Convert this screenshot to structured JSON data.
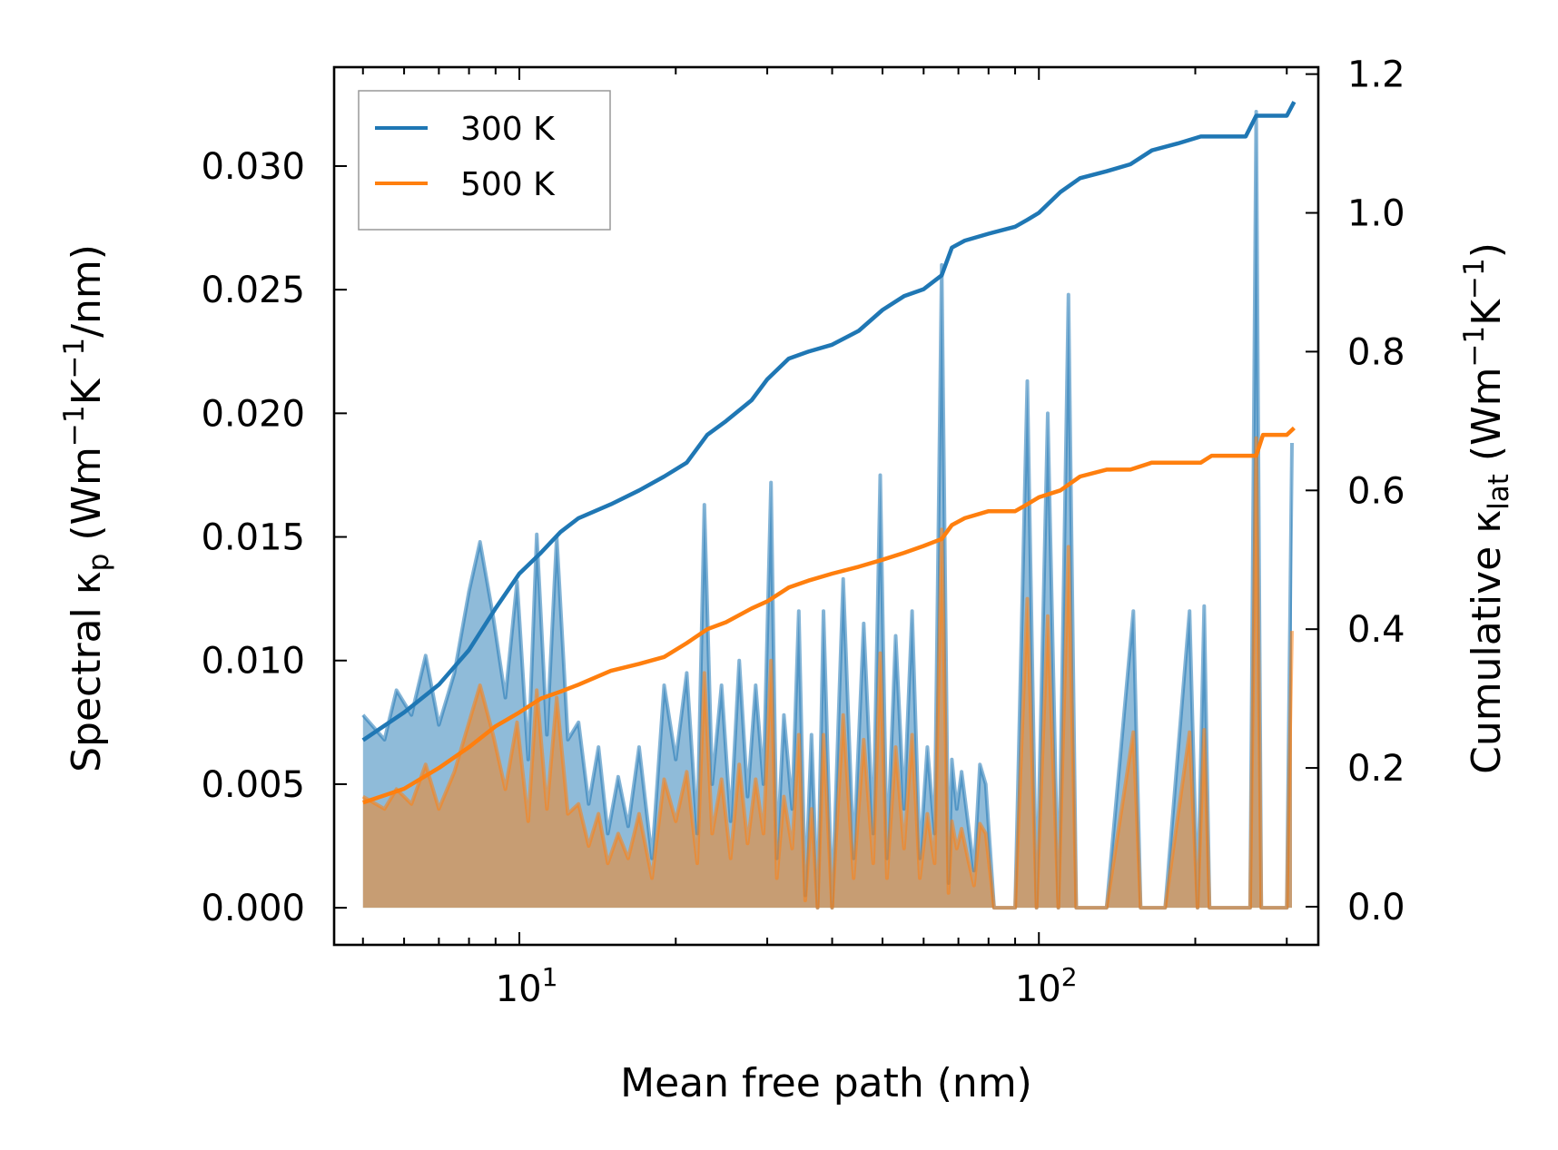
{
  "chart_data": {
    "type": "line+area",
    "x_axis": {
      "label": "Mean free path (nm)",
      "scale": "log",
      "range": [
        4.4,
        345
      ],
      "ticks": [
        {
          "value": 10,
          "base": "10",
          "exp": "1"
        },
        {
          "value": 100,
          "base": "10",
          "exp": "2"
        }
      ]
    },
    "y_axis_left": {
      "label_main": "Spectral κ",
      "label_sub": "p",
      "label_unit_a": " (Wm",
      "label_sup1": "−1",
      "label_unit_b": "K",
      "label_sup2": "−1",
      "label_unit_c": "/nm)",
      "range": [
        -0.0015,
        0.034
      ],
      "ticks": [
        {
          "value": 0.0,
          "label": "0.000"
        },
        {
          "value": 0.005,
          "label": "0.005"
        },
        {
          "value": 0.01,
          "label": "0.010"
        },
        {
          "value": 0.015,
          "label": "0.015"
        },
        {
          "value": 0.02,
          "label": "0.020"
        },
        {
          "value": 0.025,
          "label": "0.025"
        },
        {
          "value": 0.03,
          "label": "0.030"
        }
      ]
    },
    "y_axis_right": {
      "label_main": "Cumulative κ",
      "label_sub": "lat",
      "label_unit_a": " (Wm",
      "label_sup1": "−1",
      "label_unit_b": "K",
      "label_sup2": "−1",
      "label_unit_c": ")",
      "range": [
        -0.055,
        1.21
      ],
      "ticks": [
        {
          "value": 0.0,
          "label": "0.0"
        },
        {
          "value": 0.2,
          "label": "0.2"
        },
        {
          "value": 0.4,
          "label": "0.4"
        },
        {
          "value": 0.6,
          "label": "0.6"
        },
        {
          "value": 0.8,
          "label": "0.8"
        },
        {
          "value": 1.0,
          "label": "1.0"
        },
        {
          "value": 1.2,
          "label": "1.2"
        }
      ]
    },
    "legend": {
      "position": "top-left",
      "entries": [
        {
          "label": "300 K",
          "color": "#1f77b4"
        },
        {
          "label": "500 K",
          "color": "#ff7f0e"
        }
      ]
    },
    "spectral_series": [
      {
        "name": "300 K",
        "color": "#1f77b4",
        "x": [
          5.0,
          5.5,
          5.8,
          6.2,
          6.6,
          7.0,
          7.5,
          8.0,
          8.4,
          8.9,
          9.4,
          9.9,
          10.4,
          10.8,
          11.3,
          11.8,
          12.4,
          13.0,
          13.6,
          14.2,
          14.8,
          15.5,
          16.2,
          17.0,
          18.0,
          19.0,
          20.0,
          21.0,
          22.0,
          22.7,
          23.5,
          24.5,
          25.5,
          26.5,
          27.5,
          28.5,
          29.5,
          30.5,
          31.3,
          32.3,
          33.5,
          34.5,
          35.5,
          36.5,
          37.5,
          38.5,
          40.0,
          42.0,
          44.0,
          46.0,
          48.0,
          49.5,
          51.0,
          53.0,
          55.0,
          57.0,
          59.0,
          61.0,
          63.0,
          65.0,
          67.0,
          68.0,
          69.5,
          71.0,
          73.0,
          75.0,
          77.0,
          79.0,
          82.0,
          90.0,
          95.0,
          99.0,
          104.0,
          109.0,
          114.0,
          118.0,
          122.0,
          135.0,
          152.0,
          157.0,
          162.0,
          175.0,
          195.0,
          202.0,
          208.0,
          213.0,
          220.0,
          255.0,
          262.0,
          268.0,
          275.0,
          300.0,
          307.0
        ],
        "y": [
          0.0078,
          0.0068,
          0.0088,
          0.0078,
          0.0102,
          0.0074,
          0.0095,
          0.0128,
          0.0148,
          0.0118,
          0.0085,
          0.0132,
          0.006,
          0.0151,
          0.007,
          0.015,
          0.0068,
          0.0075,
          0.0042,
          0.0065,
          0.003,
          0.0053,
          0.0033,
          0.0065,
          0.002,
          0.009,
          0.006,
          0.0095,
          0.003,
          0.0163,
          0.005,
          0.009,
          0.0035,
          0.01,
          0.0045,
          0.009,
          0.005,
          0.0172,
          0.002,
          0.0078,
          0.004,
          0.012,
          0.0005,
          0.007,
          0.0,
          0.012,
          0.0,
          0.0133,
          0.002,
          0.0115,
          0.003,
          0.0175,
          0.002,
          0.011,
          0.004,
          0.012,
          0.002,
          0.0065,
          0.003,
          0.026,
          0.001,
          0.006,
          0.004,
          0.0055,
          0.0035,
          0.0015,
          0.0058,
          0.005,
          0.0,
          0.0,
          0.0213,
          0.0,
          0.02,
          0.0,
          0.0248,
          0.0,
          0.0,
          0.0,
          0.012,
          0.0,
          0.0,
          0.0,
          0.012,
          0.0,
          0.0122,
          0.0,
          0.0,
          0.0,
          0.0322,
          0.0,
          0.0,
          0.0,
          0.0188
        ]
      },
      {
        "name": "500 K",
        "color": "#ff7f0e",
        "x": [
          5.0,
          5.5,
          5.8,
          6.2,
          6.6,
          7.0,
          7.5,
          8.0,
          8.4,
          8.9,
          9.4,
          9.9,
          10.4,
          10.8,
          11.3,
          11.8,
          12.4,
          13.0,
          13.6,
          14.2,
          14.8,
          15.5,
          16.2,
          17.0,
          18.0,
          19.0,
          20.0,
          21.0,
          22.0,
          22.7,
          23.5,
          24.5,
          25.5,
          26.5,
          27.5,
          28.5,
          29.5,
          30.5,
          31.3,
          32.3,
          33.5,
          34.5,
          35.5,
          36.5,
          37.5,
          38.5,
          40.0,
          42.0,
          44.0,
          46.0,
          48.0,
          49.5,
          51.0,
          53.0,
          55.0,
          57.0,
          59.0,
          61.0,
          63.0,
          65.0,
          67.0,
          68.0,
          69.5,
          71.0,
          73.0,
          75.0,
          77.0,
          79.0,
          82.0,
          90.0,
          95.0,
          99.0,
          104.0,
          109.0,
          114.0,
          118.0,
          122.0,
          135.0,
          152.0,
          157.0,
          162.0,
          175.0,
          195.0,
          202.0,
          208.0,
          213.0,
          220.0,
          255.0,
          262.0,
          268.0,
          275.0,
          300.0,
          307.0
        ],
        "y": [
          0.0045,
          0.004,
          0.0048,
          0.0042,
          0.0058,
          0.004,
          0.0055,
          0.0075,
          0.009,
          0.007,
          0.0048,
          0.0075,
          0.0035,
          0.0088,
          0.004,
          0.0085,
          0.0038,
          0.0042,
          0.0025,
          0.0038,
          0.0018,
          0.003,
          0.002,
          0.0038,
          0.0012,
          0.0052,
          0.0035,
          0.0055,
          0.0018,
          0.0095,
          0.003,
          0.0052,
          0.002,
          0.0058,
          0.0026,
          0.0052,
          0.003,
          0.01,
          0.0012,
          0.0045,
          0.0024,
          0.007,
          0.0003,
          0.004,
          0.0,
          0.007,
          0.0,
          0.0078,
          0.0012,
          0.0068,
          0.0018,
          0.0103,
          0.0012,
          0.0065,
          0.0024,
          0.007,
          0.0012,
          0.0038,
          0.0018,
          0.0153,
          0.0006,
          0.0035,
          0.0024,
          0.0032,
          0.002,
          0.0009,
          0.0034,
          0.003,
          0.0,
          0.0,
          0.0125,
          0.0,
          0.0118,
          0.0,
          0.0146,
          0.0,
          0.0,
          0.0,
          0.0071,
          0.0,
          0.0,
          0.0,
          0.0071,
          0.0,
          0.0072,
          0.0,
          0.0,
          0.0,
          0.019,
          0.0,
          0.0,
          0.0,
          0.0112
        ]
      }
    ],
    "cumulative_series": [
      {
        "name": "300 K",
        "color": "#1f77b4",
        "x": [
          5.0,
          6.0,
          7.0,
          8.0,
          9.0,
          10.0,
          11.0,
          12.0,
          13.0,
          15.0,
          17.0,
          19.0,
          21.0,
          23.0,
          25.0,
          28.0,
          30.0,
          33.0,
          36.0,
          40.0,
          45.0,
          50.0,
          55.0,
          60.0,
          65.0,
          68.0,
          72.0,
          80.0,
          90.0,
          95.0,
          100.0,
          110.0,
          120.0,
          135.0,
          150.0,
          165.0,
          185.0,
          205.0,
          215.0,
          250.0,
          262.0,
          270.0,
          300.0,
          310.0
        ],
        "y": [
          0.24,
          0.28,
          0.32,
          0.37,
          0.43,
          0.48,
          0.51,
          0.54,
          0.56,
          0.58,
          0.6,
          0.62,
          0.64,
          0.68,
          0.7,
          0.73,
          0.76,
          0.79,
          0.8,
          0.81,
          0.83,
          0.86,
          0.88,
          0.89,
          0.91,
          0.95,
          0.96,
          0.97,
          0.98,
          0.99,
          1.0,
          1.03,
          1.05,
          1.06,
          1.07,
          1.09,
          1.1,
          1.11,
          1.11,
          1.11,
          1.14,
          1.14,
          1.14,
          1.16
        ]
      },
      {
        "name": "500 K",
        "color": "#ff7f0e",
        "x": [
          5.0,
          6.0,
          7.0,
          8.0,
          9.0,
          10.0,
          11.0,
          12.0,
          13.0,
          15.0,
          17.0,
          19.0,
          21.0,
          23.0,
          25.0,
          28.0,
          30.0,
          33.0,
          36.0,
          40.0,
          45.0,
          50.0,
          55.0,
          60.0,
          65.0,
          68.0,
          72.0,
          80.0,
          90.0,
          95.0,
          100.0,
          110.0,
          120.0,
          135.0,
          150.0,
          165.0,
          185.0,
          205.0,
          215.0,
          250.0,
          262.0,
          270.0,
          300.0,
          310.0
        ],
        "y": [
          0.15,
          0.17,
          0.2,
          0.23,
          0.26,
          0.28,
          0.3,
          0.31,
          0.32,
          0.34,
          0.35,
          0.36,
          0.38,
          0.4,
          0.41,
          0.43,
          0.44,
          0.46,
          0.47,
          0.48,
          0.49,
          0.5,
          0.51,
          0.52,
          0.53,
          0.55,
          0.56,
          0.57,
          0.57,
          0.58,
          0.59,
          0.6,
          0.62,
          0.63,
          0.63,
          0.64,
          0.64,
          0.64,
          0.65,
          0.65,
          0.65,
          0.68,
          0.68,
          0.69
        ]
      }
    ]
  }
}
